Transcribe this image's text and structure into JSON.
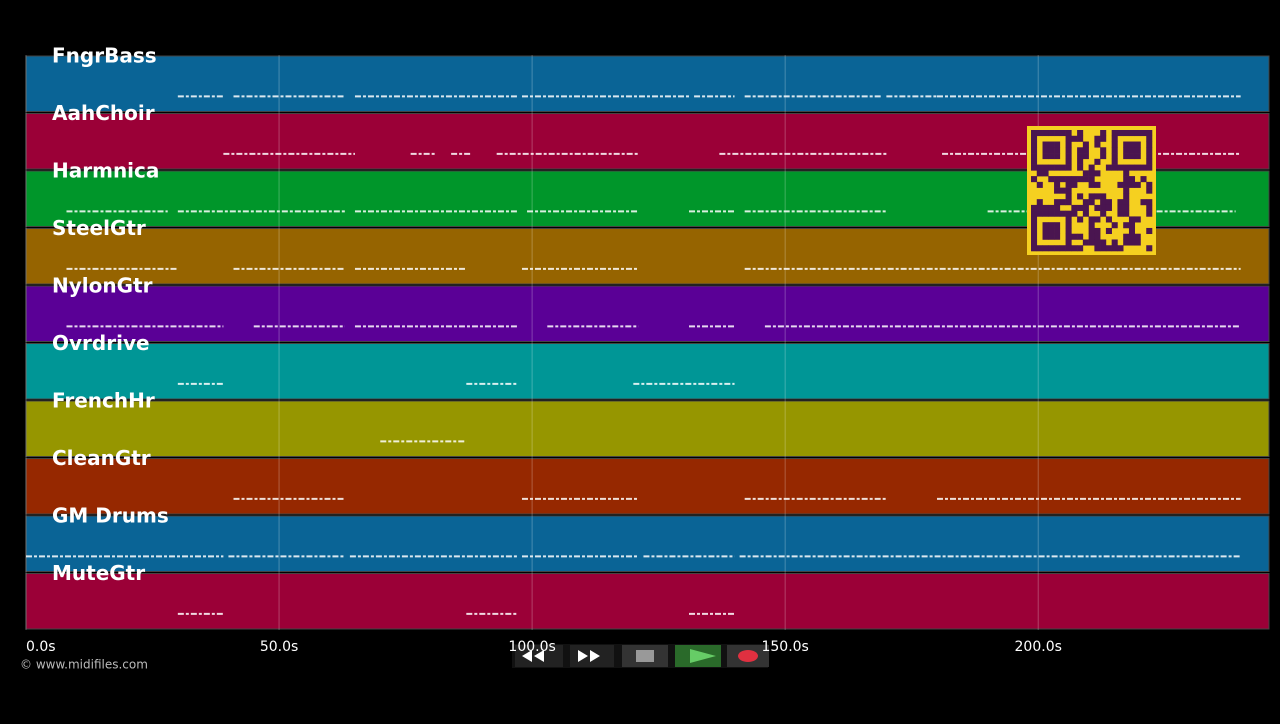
{
  "tracks": [
    {
      "name": "FngrBass",
      "color": "#0a6496",
      "notes": [
        [
          30,
          39
        ],
        [
          41,
          63
        ],
        [
          65,
          97
        ],
        [
          98,
          131
        ],
        [
          132,
          140
        ],
        [
          142,
          169
        ],
        [
          170,
          180
        ],
        [
          180,
          240
        ]
      ]
    },
    {
      "name": "AahChoir",
      "color": "#9b0037",
      "notes": [
        [
          39,
          65
        ],
        [
          76,
          81
        ],
        [
          84,
          88
        ],
        [
          93,
          121
        ],
        [
          137,
          170
        ],
        [
          181,
          240
        ]
      ]
    },
    {
      "name": "Harmnica",
      "color": "#00962a",
      "notes": [
        [
          8,
          28
        ],
        [
          30,
          63
        ],
        [
          65,
          97
        ],
        [
          99,
          121
        ],
        [
          131,
          140
        ],
        [
          142,
          170
        ],
        [
          190,
          239
        ]
      ]
    },
    {
      "name": "SteelGtr",
      "color": "#966400",
      "notes": [
        [
          8,
          30
        ],
        [
          41,
          63
        ],
        [
          65,
          87
        ],
        [
          98,
          121
        ],
        [
          142,
          240
        ]
      ]
    },
    {
      "name": "NylonGtr",
      "color": "#5a0096",
      "notes": [
        [
          8,
          39
        ],
        [
          45,
          63
        ],
        [
          65,
          97
        ],
        [
          103,
          121
        ],
        [
          131,
          140
        ],
        [
          146,
          240
        ]
      ]
    },
    {
      "name": "Ovrdrive",
      "color": "#009696",
      "notes": [
        [
          30,
          39
        ],
        [
          87,
          97
        ],
        [
          120,
          140
        ]
      ]
    },
    {
      "name": "FrenchHr",
      "color": "#969600",
      "notes": [
        [
          70,
          87
        ]
      ]
    },
    {
      "name": "CleanGtr",
      "color": "#962800",
      "notes": [
        [
          41,
          63
        ],
        [
          98,
          121
        ],
        [
          142,
          170
        ],
        [
          180,
          240
        ]
      ]
    },
    {
      "name": "GM Drums",
      "color": "#0a6496",
      "notes": [
        [
          0,
          39
        ],
        [
          40,
          63
        ],
        [
          64,
          97
        ],
        [
          98,
          121
        ],
        [
          122,
          140
        ],
        [
          141,
          240
        ]
      ]
    },
    {
      "name": "MuteGtr",
      "color": "#9b0037",
      "notes": [
        [
          30,
          39
        ],
        [
          87,
          97
        ],
        [
          131,
          140
        ]
      ]
    }
  ],
  "time_axis": {
    "lim": [
      0,
      245.6
    ],
    "ticks": [
      {
        "value": 0,
        "label": "0.0s"
      },
      {
        "value": 50,
        "label": "50.0s"
      },
      {
        "value": 100,
        "label": "100.0s"
      },
      {
        "value": 150,
        "label": "150.0s"
      },
      {
        "value": 200,
        "label": "200.0s"
      }
    ]
  },
  "footer": "© www.midifiles.com"
}
